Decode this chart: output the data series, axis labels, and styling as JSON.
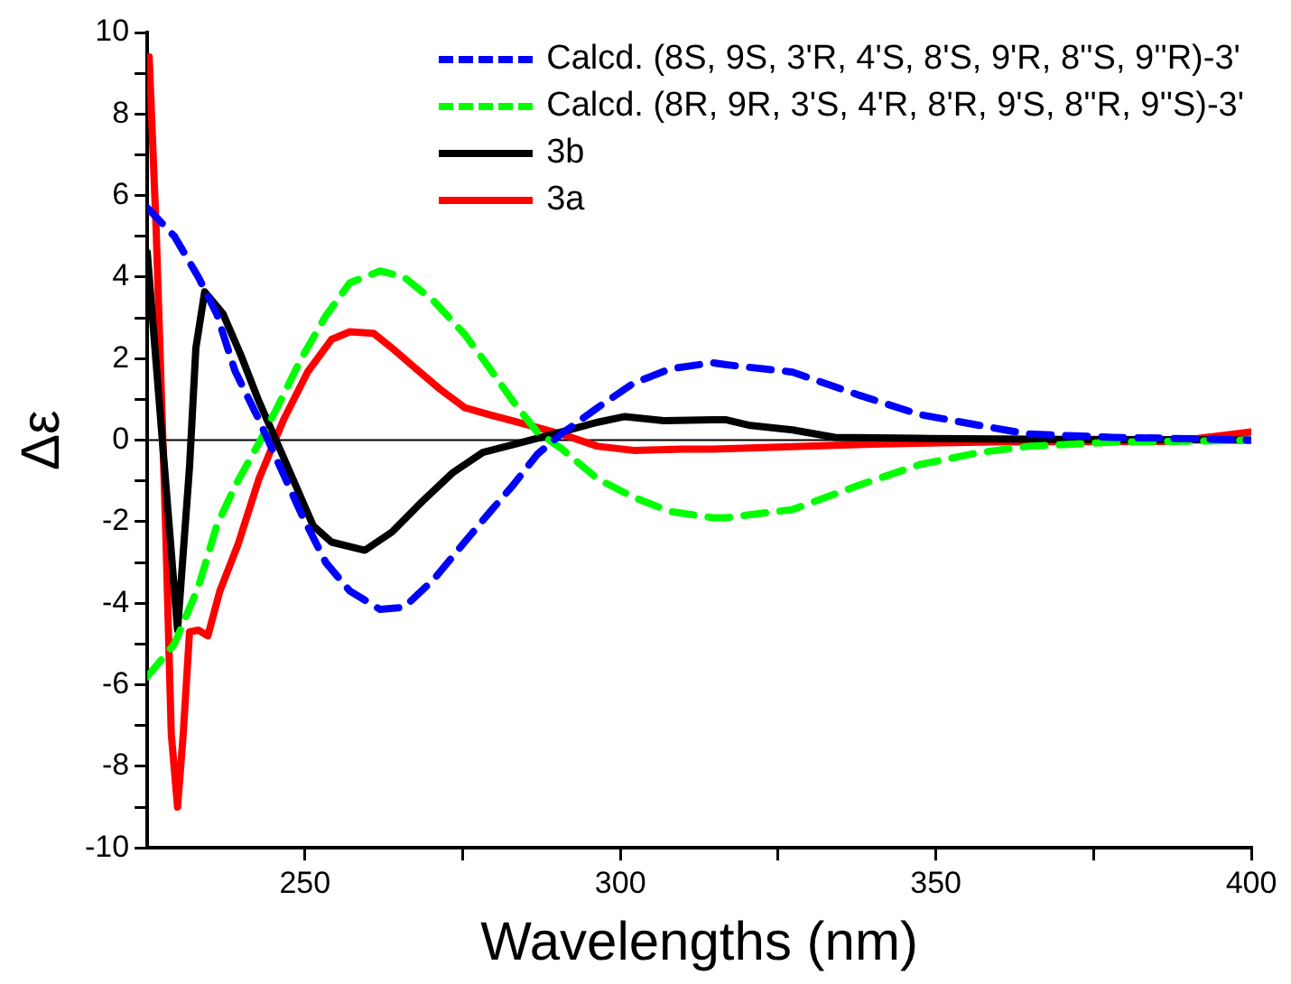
{
  "chart_data": {
    "type": "line",
    "xlabel": "Wavelengths (nm)",
    "ylabel": "Δε",
    "xlim": [
      225,
      400
    ],
    "xticks": [
      250,
      {
        "value": 275,
        "label": null
      },
      300,
      {
        "value": 325,
        "label": null
      },
      350,
      {
        "value": 375,
        "label": null
      },
      400
    ],
    "ylim": [
      -10,
      10
    ],
    "yticks": [
      -10,
      {
        "value": -9,
        "label": null
      },
      -8,
      {
        "value": -7,
        "label": null
      },
      -6,
      {
        "value": -5,
        "label": null
      },
      -4,
      {
        "value": -3,
        "label": null
      },
      -2,
      {
        "value": -1,
        "label": null
      },
      0,
      {
        "value": 1,
        "label": null
      },
      2,
      {
        "value": 3,
        "label": null
      },
      4,
      {
        "value": 5,
        "label": null
      },
      6,
      {
        "value": 7,
        "label": null
      },
      8,
      {
        "value": 9,
        "label": null
      },
      10
    ],
    "grid": false,
    "legend": "top right",
    "marker": "none",
    "ref_lines": [
      {
        "axis": "y",
        "value": 0,
        "color": "#000000"
      }
    ],
    "series": [
      {
        "name": "Calcd. (8S, 9S, 3'R, 4'S, 8'S, 9'R, 8''S, 9''R)-3'",
        "color": "#0000ff",
        "line_style": "dashed",
        "x": [
          225,
          229.3,
          233.1,
          236,
          238.9,
          242.7,
          245.6,
          249.4,
          253.3,
          257.1,
          261.9,
          265.7,
          270.5,
          275.3,
          279.1,
          283,
          286.8,
          290.6,
          296.4,
          302.1,
          307.9,
          314.6,
          316.8,
          327.3,
          337.9,
          347.4,
          357,
          364.7,
          378,
          392.4,
          400
        ],
        "values": [
          5.7,
          5.0,
          4.0,
          3.1,
          1.7,
          0.5,
          -0.5,
          -1.8,
          -3.0,
          -3.7,
          -4.15,
          -4.1,
          -3.4,
          -2.5,
          -1.8,
          -1.1,
          -0.35,
          0.15,
          0.8,
          1.4,
          1.75,
          1.9,
          1.85,
          1.67,
          1.1,
          0.63,
          0.36,
          0.15,
          0.07,
          0.03,
          0
        ]
      },
      {
        "name": "Calcd. (8R, 9R, 3'S, 4'R, 8'R, 9'S, 8''R, 9''S)-3'",
        "color": "#00ff00",
        "line_style": "dashed",
        "x": [
          225,
          229.3,
          233.1,
          236,
          239,
          242.7,
          245.6,
          249.4,
          253.3,
          257.1,
          261.9,
          265.7,
          270.5,
          275.3,
          279.1,
          283,
          286.8,
          290.6,
          296.4,
          302.1,
          307.9,
          314.6,
          316.8,
          327.3,
          337.9,
          347.4,
          357,
          364.7,
          378,
          392.4,
          400
        ],
        "values": [
          -5.8,
          -5.0,
          -3.6,
          -2.1,
          -1.1,
          -0.07,
          0.8,
          2.0,
          3.05,
          3.86,
          4.15,
          4.0,
          3.4,
          2.6,
          1.8,
          0.95,
          0.2,
          -0.2,
          -0.95,
          -1.4,
          -1.75,
          -1.9,
          -1.9,
          -1.7,
          -1.1,
          -0.6,
          -0.3,
          -0.15,
          -0.05,
          -0.02,
          0
        ]
      },
      {
        "name": "3b",
        "color": "#000000",
        "line_style": "solid",
        "x": [
          225,
          229.8,
          231.7,
          232.7,
          234.1,
          237,
          239.8,
          242.7,
          245.6,
          248.5,
          251.3,
          254.2,
          259.5,
          263.8,
          268.6,
          273.4,
          278.2,
          283.9,
          290.6,
          296.4,
          300.7,
          306.9,
          314.6,
          316.8,
          320.6,
          327.3,
          334,
          349.3,
          370,
          400
        ],
        "values": [
          4.6,
          -4.66,
          -0.65,
          2.26,
          3.64,
          3.1,
          2.1,
          0.95,
          -0.07,
          -1.1,
          -2.1,
          -2.5,
          -2.7,
          -2.25,
          -1.5,
          -0.8,
          -0.3,
          -0.07,
          0.2,
          0.44,
          0.58,
          0.48,
          0.5,
          0.5,
          0.36,
          0.25,
          0.07,
          0.04,
          0.02,
          0
        ]
      },
      {
        "name": "3a",
        "color": "#ff0000",
        "line_style": "solid",
        "x": [
          225.3,
          226.4,
          227.9,
          228.8,
          229.8,
          230.7,
          231.7,
          233.1,
          234.6,
          236.5,
          239.4,
          242.7,
          246.6,
          250.4,
          254.2,
          257.1,
          260.9,
          263.8,
          267.6,
          271.5,
          275.3,
          279.1,
          284.9,
          290.6,
          296.4,
          302.1,
          309.8,
          314.6,
          320.6,
          339.8,
          359,
          387.7,
          400
        ],
        "values": [
          9.4,
          5.2,
          -2.1,
          -7.2,
          -9.0,
          -7.2,
          -4.7,
          -4.66,
          -4.8,
          -3.7,
          -2.55,
          -0.95,
          0.5,
          1.67,
          2.47,
          2.66,
          2.62,
          2.26,
          1.75,
          1.24,
          0.8,
          0.63,
          0.39,
          0.15,
          -0.15,
          -0.25,
          -0.22,
          -0.22,
          -0.19,
          -0.1,
          -0.04,
          -0.03,
          0.2
        ]
      }
    ]
  }
}
